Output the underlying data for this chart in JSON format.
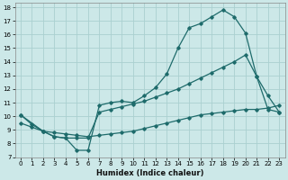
{
  "xlabel": "Humidex (Indice chaleur)",
  "bg_color": "#cce8e8",
  "grid_color": "#aad0d0",
  "line_color": "#1e6b6b",
  "xlim": [
    -0.5,
    23.5
  ],
  "ylim": [
    7,
    18.3
  ],
  "xticks": [
    0,
    1,
    2,
    3,
    4,
    5,
    6,
    7,
    8,
    9,
    10,
    11,
    12,
    13,
    14,
    15,
    16,
    17,
    18,
    19,
    20,
    21,
    22,
    23
  ],
  "yticks": [
    7,
    8,
    9,
    10,
    11,
    12,
    13,
    14,
    15,
    16,
    17,
    18
  ],
  "line1_x": [
    0,
    1,
    2,
    3,
    4,
    5,
    6,
    7,
    8,
    9,
    10,
    11,
    12,
    13,
    14,
    15,
    16,
    17,
    18,
    19,
    20,
    21,
    22,
    23
  ],
  "line1_y": [
    10.1,
    9.4,
    8.9,
    8.5,
    8.4,
    7.5,
    7.5,
    10.8,
    11.0,
    11.1,
    11.0,
    11.5,
    12.1,
    13.1,
    15.0,
    16.5,
    16.8,
    17.3,
    17.8,
    17.3,
    16.1,
    12.9,
    10.5,
    10.3
  ],
  "line2_x": [
    0,
    2,
    3,
    4,
    5,
    6,
    7,
    8,
    9,
    10,
    11,
    12,
    13,
    14,
    15,
    16,
    17,
    18,
    19,
    20,
    21,
    22,
    23
  ],
  "line2_y": [
    10.1,
    8.9,
    8.5,
    8.4,
    8.4,
    8.4,
    10.3,
    10.5,
    10.7,
    10.9,
    11.1,
    11.4,
    11.7,
    12.0,
    12.4,
    12.8,
    13.2,
    13.6,
    14.0,
    14.5,
    12.9,
    11.5,
    10.3
  ],
  "line3_x": [
    0,
    1,
    2,
    3,
    4,
    5,
    6,
    7,
    8,
    9,
    10,
    11,
    12,
    13,
    14,
    15,
    16,
    17,
    18,
    19,
    20,
    21,
    22,
    23
  ],
  "line3_y": [
    9.5,
    9.2,
    8.9,
    8.8,
    8.7,
    8.6,
    8.5,
    8.6,
    8.7,
    8.8,
    8.9,
    9.1,
    9.3,
    9.5,
    9.7,
    9.9,
    10.1,
    10.2,
    10.3,
    10.4,
    10.5,
    10.5,
    10.6,
    10.8
  ]
}
